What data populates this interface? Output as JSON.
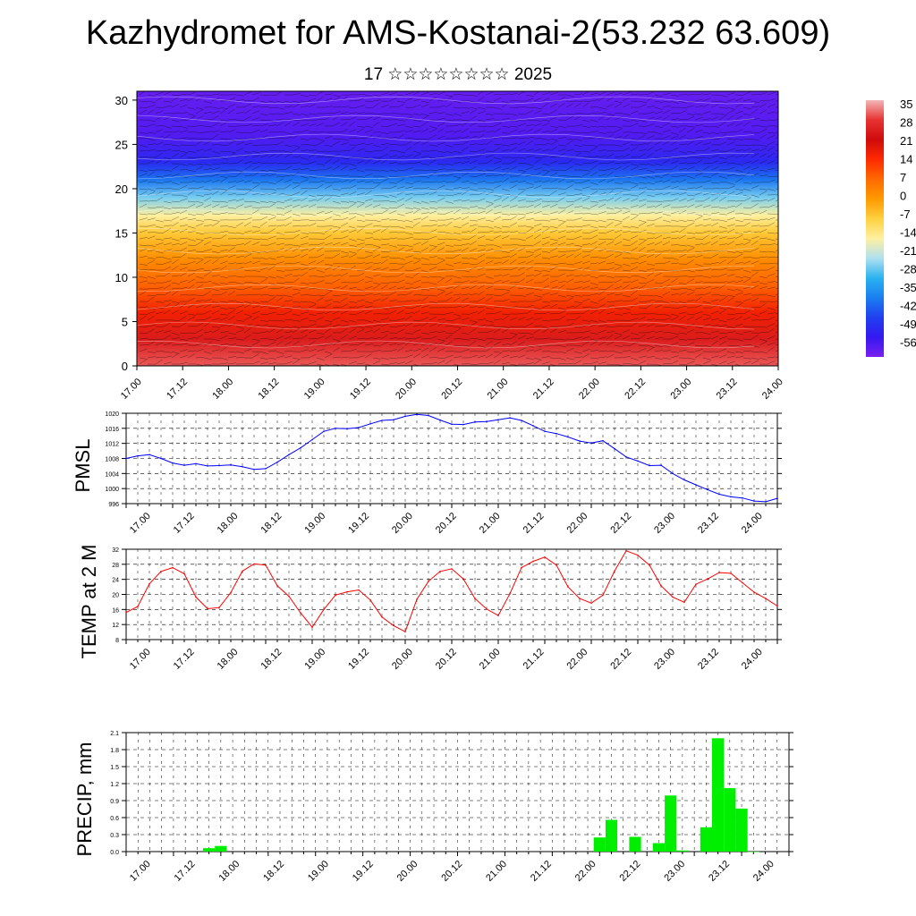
{
  "header": {
    "title": "Kazhydromet for AMS-Kostanai-2(53.232 63.609)",
    "subtitle": "17 ☆☆☆☆☆☆☆☆ 2025"
  },
  "chart_data": [
    {
      "type": "heatmap",
      "title": "",
      "ylabel": "",
      "ylim": [
        0,
        31
      ],
      "yticks": [
        "0",
        "5",
        "10",
        "15",
        "20",
        "25",
        "30"
      ],
      "xticks": [
        "17.00",
        "17.12",
        "18.00",
        "18.12",
        "19.00",
        "19.12",
        "20.00",
        "20.12",
        "21.00",
        "21.12",
        "22.00",
        "22.12",
        "23.00",
        "23.12",
        "24.00"
      ],
      "colorbar_labels": [
        "35",
        "28",
        "21",
        "14",
        "7",
        "0",
        "-7",
        "-14",
        "-21",
        "-28",
        "-35",
        "-42",
        "-49",
        "-56"
      ],
      "colorbar_colors": [
        "#f2b6b6",
        "#e83232",
        "#cf0b0b",
        "#ff2a00",
        "#ff6a00",
        "#ff9a00",
        "#ffd040",
        "#fff0a0",
        "#b0e0f0",
        "#2bb3f0",
        "#1a7ff0",
        "#2040f0",
        "#3418f0",
        "#7a20f0"
      ],
      "profile": {
        "heights": [
          0,
          3,
          6,
          9,
          12,
          15,
          17,
          19,
          21,
          23,
          26,
          31
        ],
        "temps": [
          30,
          24,
          16,
          8,
          2,
          -6,
          -14,
          -24,
          -36,
          -46,
          -52,
          -54
        ]
      }
    },
    {
      "type": "line",
      "ylabel": "PMSL",
      "ylim": [
        996,
        1020
      ],
      "yticks": [
        "996",
        "1000",
        "1004",
        "1008",
        "1012",
        "1016",
        "1020"
      ],
      "xticks": [
        "17.00",
        "17.12",
        "18.00",
        "18.12",
        "19.00",
        "19.12",
        "20.00",
        "20.12",
        "21.00",
        "21.12",
        "22.00",
        "22.12",
        "23.00",
        "23.12",
        "24.00"
      ],
      "color": "#0000ff",
      "x": [
        0,
        3,
        6,
        9,
        12,
        15,
        18,
        21,
        24,
        27,
        30,
        33,
        36,
        39,
        42,
        45,
        48,
        51,
        54,
        57,
        60,
        63,
        66,
        69,
        72,
        75,
        78,
        81,
        84,
        87,
        90,
        93,
        96,
        99,
        102,
        105,
        108,
        111,
        114,
        117,
        120,
        123,
        126,
        129,
        132,
        135,
        138,
        141,
        144,
        147,
        150,
        153,
        156,
        159,
        162,
        165,
        168
      ],
      "values": [
        1008,
        1008.7,
        1009,
        1008,
        1006.8,
        1006.2,
        1006.6,
        1006,
        1006.1,
        1006.3,
        1005.8,
        1005.1,
        1005.3,
        1007,
        1009,
        1010.8,
        1013,
        1015.2,
        1016,
        1015.9,
        1016.2,
        1017.2,
        1018.1,
        1018.3,
        1019.2,
        1019.7,
        1019.4,
        1018.2,
        1017.1,
        1017,
        1017.7,
        1017.8,
        1018.3,
        1018.8,
        1018.1,
        1016.7,
        1015.2,
        1014.6,
        1013.7,
        1012.6,
        1012.1,
        1012.7,
        1010.6,
        1008.4,
        1007.3,
        1006.1,
        1006.2,
        1004,
        1002.3,
        1001,
        999.7,
        998.5,
        997.8,
        997.5,
        996.7,
        996.5,
        997.4
      ]
    },
    {
      "type": "line",
      "ylabel": "TEMP at 2 M",
      "ylim": [
        8,
        32
      ],
      "yticks": [
        "8",
        "12",
        "16",
        "20",
        "24",
        "28",
        "32"
      ],
      "xticks": [
        "17.00",
        "17.12",
        "18.00",
        "18.12",
        "19.00",
        "19.12",
        "20.00",
        "20.12",
        "21.00",
        "21.12",
        "22.00",
        "22.12",
        "23.00",
        "23.12",
        "24.00"
      ],
      "color": "#ff0000",
      "x": [
        0,
        3,
        6,
        9,
        12,
        15,
        18,
        21,
        24,
        27,
        30,
        33,
        36,
        39,
        42,
        45,
        48,
        51,
        54,
        57,
        60,
        63,
        66,
        69,
        72,
        75,
        78,
        81,
        84,
        87,
        90,
        93,
        96,
        99,
        102,
        105,
        108,
        111,
        114,
        117,
        120,
        123,
        126,
        129,
        132,
        135,
        138,
        141,
        144,
        147,
        150,
        153,
        156,
        159,
        162,
        165,
        168
      ],
      "values": [
        15.2,
        16.8,
        22.8,
        26.1,
        27.1,
        25.5,
        19.3,
        16.2,
        16.5,
        20.5,
        26.2,
        28.1,
        27.8,
        22.3,
        19.5,
        15.1,
        11.3,
        16,
        19.8,
        20.7,
        21.2,
        18.5,
        14,
        11.7,
        10.1,
        18.7,
        23.5,
        26.1,
        26.8,
        24.1,
        18.9,
        16.1,
        14.4,
        20.2,
        27.1,
        28.8,
        29.9,
        27.8,
        22,
        18.9,
        17.7,
        19.8,
        26.2,
        31.6,
        30.4,
        27.8,
        22.3,
        19.3,
        17.9,
        22.7,
        24.1,
        25.8,
        25.6,
        23.1,
        20.6,
        18.9,
        16.9
      ]
    },
    {
      "type": "bar",
      "ylabel": "PRECIP, mm",
      "ylim": [
        0,
        2.1
      ],
      "yticks": [
        "0.0",
        "0.3",
        "0.6",
        "0.9",
        "1.2",
        "1.5",
        "1.8",
        "2.1"
      ],
      "xticks": [
        "17.00",
        "17.12",
        "18.00",
        "18.12",
        "19.00",
        "19.12",
        "20.00",
        "20.12",
        "21.00",
        "21.12",
        "22.00",
        "22.12",
        "23.00",
        "23.12",
        "24.00"
      ],
      "color": "#00ee00",
      "x": [
        21,
        24,
        120,
        123,
        129,
        135,
        138,
        141,
        147,
        150,
        153,
        156,
        159
      ],
      "values": [
        0.06,
        0.1,
        0.25,
        0.56,
        0.26,
        0.15,
        0.99,
        0.02,
        0.43,
        2.0,
        1.12,
        0.76,
        0.0
      ]
    }
  ]
}
